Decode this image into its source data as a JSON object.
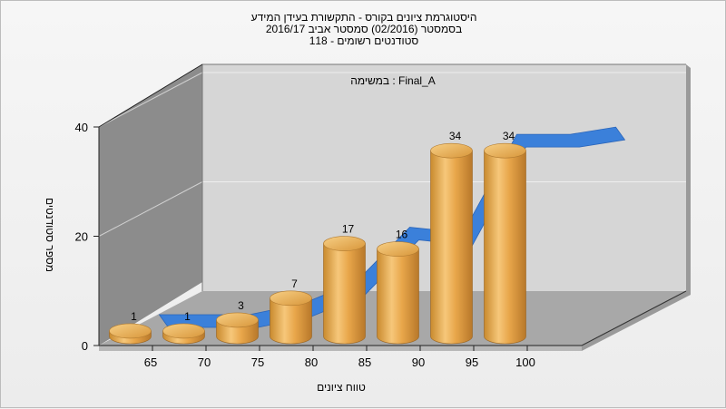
{
  "chart_title": {
    "line1": "היסטוגרמת ציונים בקורס - התקשורת בעידן המידע",
    "line2": "בסמסטר  (02/2016)  סמסטר אביב 2016/17",
    "line3": "סטודנטים רשומים - 118"
  },
  "chart_data": {
    "type": "bar",
    "title": "היסטוגרמת ציונים בקורס - התקשורת בעידן המידע",
    "xlabel": "טווח ציונים",
    "ylabel": "מספר סטודנטים",
    "categories": [
      "65",
      "70",
      "75",
      "80",
      "85",
      "90",
      "95",
      "100"
    ],
    "series": [
      {
        "name": "Final_A : במשימה",
        "values": [
          1,
          1,
          3,
          7,
          17,
          16,
          34,
          34
        ]
      }
    ],
    "ylim": [
      0,
      40
    ],
    "yticks": [
      0,
      20,
      40
    ],
    "grid": true,
    "background_series_ribbon": true,
    "colors": {
      "bars": "#e0a23c",
      "ribbon": "#3a7fd9",
      "back_wall": "#d3d3d3",
      "side_wall": "#8e8e8e"
    }
  }
}
